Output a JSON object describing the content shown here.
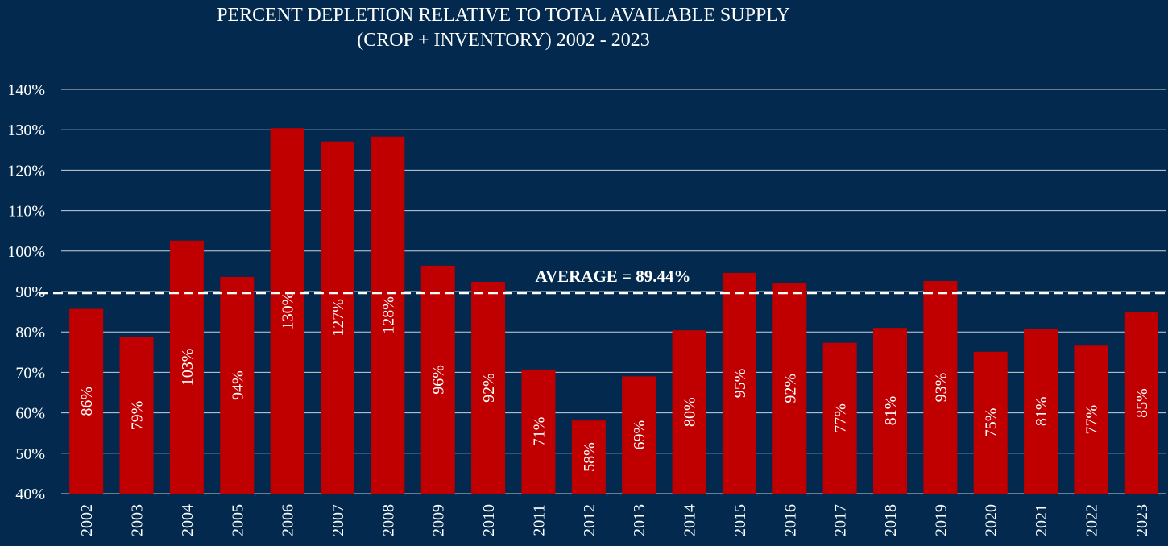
{
  "chart_data": {
    "type": "bar",
    "title_line1": "PERCENT DEPLETION RELATIVE TO TOTAL AVAILABLE SUPPLY",
    "title_line2": "(CROP + INVENTORY) 2002 - 2023",
    "xlabel": "",
    "ylabel": "",
    "ylim": [
      40,
      140
    ],
    "yticks": [
      40,
      50,
      60,
      70,
      80,
      90,
      100,
      110,
      120,
      130,
      140
    ],
    "ytick_labels": [
      "40%",
      "50%",
      "60%",
      "70%",
      "80%",
      "90%",
      "100%",
      "110%",
      "120%",
      "130%",
      "140%"
    ],
    "categories": [
      "2002",
      "2003",
      "2004",
      "2005",
      "2006",
      "2007",
      "2008",
      "2009",
      "2010",
      "2011",
      "2012",
      "2013",
      "2014",
      "2015",
      "2016",
      "2017",
      "2018",
      "2019",
      "2020",
      "2021",
      "2022",
      "2023"
    ],
    "values": [
      85.7,
      78.7,
      102.6,
      93.6,
      130.4,
      127.1,
      128.3,
      96.4,
      92.4,
      70.7,
      58.1,
      69.0,
      80.4,
      94.6,
      92.1,
      77.3,
      81.0,
      92.6,
      75.1,
      80.7,
      76.6,
      84.8
    ],
    "data_labels": [
      "86%",
      "79%",
      "103%",
      "94%",
      "130%",
      "127%",
      "128%",
      "96%",
      "92%",
      "71%",
      "58%",
      "69%",
      "80%",
      "95%",
      "92%",
      "77%",
      "81%",
      "93%",
      "75%",
      "81%",
      "77%",
      "85%"
    ],
    "average": 89.44,
    "average_label": "AVERAGE = 89.44%",
    "grid": true,
    "colors": {
      "background": "#032a4e",
      "bar": "#c00000",
      "text": "#ffffff",
      "grid": "#c8d0da",
      "average_line": "#ffffff"
    }
  }
}
